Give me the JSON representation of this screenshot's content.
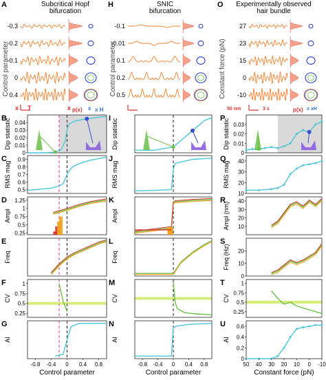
{
  "columns": [
    {
      "letter": "A",
      "title_line1": "Subcritical Hopf",
      "title_line2": "bifurcation",
      "row_labels": [
        "-0.3",
        "-0.2",
        "-0.1",
        "0",
        "0.4"
      ],
      "y_axis_label": "Control parameter",
      "trace_color": "#ef7f2a",
      "scale_labels": [
        "x",
        "T",
        "x",
        "p(x)",
        "x",
        "x",
        "H"
      ]
    },
    {
      "letter": "H",
      "title_line1": "SNIC",
      "title_line2": "bifurcation",
      "row_labels": [
        "-0.1",
        "-0.01",
        "0.1",
        "0.2",
        "0.5"
      ],
      "y_axis_label": "Control parameter",
      "trace_color": "#ef7f2a"
    },
    {
      "letter": "O",
      "title_line1": "Experimentally observed",
      "title_line2": "hair bundle",
      "row_labels": [
        "27",
        "23",
        "15",
        "0",
        "-10"
      ],
      "y_axis_label": "Constant force (pN)",
      "trace_color": "#ef7f2a",
      "scale_labels": [
        "50 nm",
        "3 s",
        "p(x)",
        "x",
        "x",
        "H"
      ]
    }
  ],
  "panel_letters": {
    "col1": [
      "B",
      "C",
      "D",
      "E",
      "F",
      "G"
    ],
    "col2": [
      "I",
      "J",
      "K",
      "L",
      "M",
      "N"
    ],
    "col3": [
      "P",
      "Q",
      "R",
      "S",
      "T",
      "U"
    ]
  },
  "row_ylabels": [
    "Dip statistic",
    "RMS mag",
    "Ampl",
    "Freq",
    "CV",
    "AI"
  ],
  "row_ylabels_col3": [
    "Dip statistic",
    "RMS mag",
    "Ampl (nm)",
    "Freq (Hz)",
    "CV",
    "AI"
  ],
  "xlabels": [
    "Control parameter",
    "Control parameter",
    "Constant force (pN)"
  ],
  "colors": {
    "cyan": "#4cc6d8",
    "green": "#6cc04a",
    "orange": "#f2a11f",
    "red": "#d8332a",
    "magenta": "#e0319e",
    "purple": "#8a5fe0",
    "gray": "#d9d9d9",
    "lime": "#cde85a",
    "blue": "#3a4fd0"
  },
  "chart_data": [
    {
      "type": "line",
      "panel": "B",
      "ylabel": "Dip statistic",
      "xlim": [
        -1,
        1
      ],
      "ylim": [
        0,
        0.05
      ],
      "x": [
        -1,
        -0.6,
        -0.3,
        -0.15,
        -0.05,
        0,
        0.05,
        0.2,
        0.5,
        0.8,
        1
      ],
      "series": [
        {
          "values": [
            0.0,
            0.0,
            0.001,
            0.004,
            0.015,
            0.03,
            0.038,
            0.042,
            0.045,
            0.047,
            0.048
          ]
        }
      ],
      "yticks": [
        "0",
        "0.01",
        "0.02",
        "0.03",
        "0.04"
      ]
    },
    {
      "type": "line",
      "panel": "C",
      "ylabel": "RMS mag",
      "xlim": [
        -1,
        1
      ],
      "ylim": [
        0.45,
        0.95
      ],
      "x": [
        -1,
        -0.8,
        -0.6,
        -0.4,
        -0.2,
        -0.1,
        0,
        0.1,
        0.2,
        0.4,
        0.6,
        0.8,
        1
      ],
      "series": [
        {
          "values": [
            0.49,
            0.5,
            0.51,
            0.52,
            0.55,
            0.58,
            0.7,
            0.78,
            0.82,
            0.86,
            0.89,
            0.91,
            0.93
          ]
        }
      ],
      "yticks": [
        "0.5",
        "0.6",
        "0.7",
        "0.8",
        "0.9"
      ]
    },
    {
      "type": "line",
      "panel": "D",
      "ylabel": "Ampl",
      "xlim": [
        -1,
        1
      ],
      "ylim": [
        0.2,
        1.35
      ],
      "x": [
        -0.35,
        -0.2,
        0,
        0.2,
        0.4,
        0.6,
        0.8,
        1
      ],
      "series": [
        {
          "values": [
            0.85,
            0.9,
            0.97,
            1.05,
            1.12,
            1.18,
            1.22,
            1.26
          ]
        }
      ],
      "yticks": [
        "0.25",
        "0.5",
        "0.75",
        "1",
        "1.25"
      ]
    },
    {
      "type": "line",
      "panel": "E",
      "ylabel": "Freq",
      "xlim": [
        -1,
        1
      ],
      "x": [
        -0.4,
        -0.2,
        0,
        0.2,
        0.4,
        0.6,
        0.8,
        1
      ],
      "series": [
        {
          "values": [
            0.25,
            0.4,
            0.52,
            0.6,
            0.66,
            0.72,
            0.78,
            0.82
          ]
        }
      ]
    },
    {
      "type": "line",
      "panel": "F",
      "ylabel": "CV",
      "xlim": [
        -1,
        1
      ],
      "ylim": [
        0.15,
        1.1
      ],
      "x": [
        -0.2,
        -0.1,
        0
      ],
      "series": [
        {
          "values": [
            1.0,
            0.55,
            0.3
          ]
        }
      ],
      "yticks": [
        "0.25",
        "0.5",
        "0.75",
        "1"
      ]
    },
    {
      "type": "line",
      "panel": "G",
      "ylabel": "AI",
      "xlim": [
        -1,
        1
      ],
      "x": [
        -0.3,
        -0.1,
        0,
        0.1,
        0.3,
        0.6,
        1
      ],
      "series": [
        {
          "values": [
            0.0,
            0.05,
            0.5,
            0.9,
            1.0,
            1.0,
            1.0
          ]
        }
      ],
      "xticks": [
        "-0.8",
        "-0.4",
        "0",
        "0.4",
        "0.8"
      ],
      "xlabel": "Control parameter"
    },
    {
      "type": "line",
      "panel": "I",
      "ylabel": "Dip statistic",
      "xlim": [
        -1,
        1
      ],
      "x": [
        -1,
        -0.5,
        0,
        0.2,
        0.5,
        0.8,
        1
      ],
      "series": [
        {
          "values": [
            0,
            0,
            0.005,
            0.015,
            0.03,
            0.045,
            0.05
          ]
        }
      ]
    },
    {
      "type": "line",
      "panel": "J",
      "ylabel": "RMS mag",
      "xlim": [
        -1,
        1
      ],
      "x": [
        -1,
        -0.5,
        -0.05,
        0,
        0.05,
        0.5,
        1
      ],
      "series": [
        {
          "values": [
            0.05,
            0.06,
            0.08,
            0.6,
            0.75,
            0.85,
            0.88
          ]
        }
      ]
    },
    {
      "type": "line",
      "panel": "K",
      "ylabel": "Ampl",
      "xlim": [
        -1,
        1
      ],
      "x": [
        -1,
        -0.5,
        -0.05,
        0,
        0.05,
        0.5,
        1
      ],
      "series": [
        {
          "values": [
            0.25,
            0.3,
            0.35,
            0.9,
            0.92,
            0.95,
            0.97
          ]
        }
      ]
    },
    {
      "type": "line",
      "panel": "L",
      "ylabel": "Freq",
      "xlim": [
        -1,
        1
      ],
      "x": [
        -1,
        -0.5,
        0,
        0.2,
        0.5,
        0.8,
        1
      ],
      "series": [
        {
          "values": [
            0,
            0,
            0,
            0.3,
            0.55,
            0.75,
            0.85
          ]
        }
      ]
    },
    {
      "type": "line",
      "panel": "M",
      "ylabel": "CV",
      "xlim": [
        -1,
        1
      ],
      "x": [
        0,
        0.05,
        0.1,
        0.3,
        0.6,
        1
      ],
      "series": [
        {
          "values": [
            0.9,
            0.4,
            0.25,
            0.15,
            0.12,
            0.1
          ]
        }
      ]
    },
    {
      "type": "line",
      "panel": "N",
      "ylabel": "AI",
      "xlim": [
        -1,
        1
      ],
      "x": [
        -1,
        -0.05,
        0,
        0.1,
        0.5,
        1
      ],
      "series": [
        {
          "values": [
            0,
            0,
            0.8,
            0.85,
            0.9,
            0.92
          ]
        }
      ],
      "xticks": [
        "-0.8",
        "-0.4",
        "0",
        "0.4",
        "0.8"
      ],
      "xlabel": "Control parameter"
    },
    {
      "type": "line",
      "panel": "P",
      "ylabel": "Dip statistic",
      "xlim": [
        50,
        -10
      ],
      "ylim": [
        0,
        0.04
      ],
      "x": [
        50,
        45,
        40,
        35,
        30,
        25,
        20,
        15,
        10,
        5,
        0,
        -5,
        -10
      ],
      "series": [
        {
          "values": [
            0.003,
            0.004,
            0.004,
            0.005,
            0.006,
            0.005,
            0.007,
            0.01,
            0.02,
            0.024,
            0.022,
            0.03,
            0.033
          ]
        }
      ],
      "yticks": [
        "0",
        "0.01",
        "0.02",
        "0.03"
      ]
    },
    {
      "type": "line",
      "panel": "Q",
      "ylabel": "RMS mag",
      "xlim": [
        50,
        -10
      ],
      "ylim": [
        10,
        45
      ],
      "x": [
        50,
        40,
        30,
        25,
        20,
        15,
        10,
        5,
        0,
        -5,
        -10
      ],
      "series": [
        {
          "values": [
            13,
            13,
            14,
            15,
            18,
            28,
            33,
            36,
            37,
            38,
            40
          ]
        }
      ],
      "yticks": [
        "10",
        "20",
        "30",
        "40"
      ]
    },
    {
      "type": "line",
      "panel": "R",
      "ylabel": "Ampl (nm)",
      "xlim": [
        50,
        -10
      ],
      "ylim": [
        0,
        45
      ],
      "x": [
        30,
        25,
        20,
        15,
        10,
        5,
        0,
        -5,
        -10
      ],
      "series": [
        {
          "values": [
            10,
            15,
            25,
            35,
            38,
            33,
            40,
            35,
            42
          ]
        }
      ],
      "yticks": [
        "10",
        "20",
        "30",
        "40"
      ]
    },
    {
      "type": "line",
      "panel": "S",
      "ylabel": "Freq (Hz)",
      "xlim": [
        50,
        -10
      ],
      "ylim": [
        0,
        30
      ],
      "x": [
        30,
        25,
        20,
        15,
        10,
        5,
        0,
        -5,
        -10
      ],
      "series": [
        {
          "values": [
            2,
            4,
            8,
            12,
            10,
            12,
            15,
            18,
            25
          ]
        }
      ],
      "yticks": [
        "0",
        "10",
        "20"
      ]
    },
    {
      "type": "line",
      "panel": "T",
      "ylabel": "CV",
      "xlim": [
        50,
        -10
      ],
      "ylim": [
        0.1,
        1.1
      ],
      "x": [
        30,
        25,
        20,
        15,
        10,
        5,
        0,
        -5,
        -10
      ],
      "series": [
        {
          "values": [
            0.8,
            0.6,
            0.45,
            0.5,
            0.4,
            0.35,
            0.3,
            0.25,
            0.2
          ]
        }
      ],
      "yticks": [
        "0.25",
        "0.5",
        "0.75",
        "1"
      ]
    },
    {
      "type": "line",
      "panel": "U",
      "ylabel": "AI",
      "xlim": [
        50,
        -10
      ],
      "ylim": [
        0,
        0.7
      ],
      "x": [
        50,
        40,
        30,
        25,
        20,
        15,
        10,
        5,
        0,
        -5,
        -10
      ],
      "series": [
        {
          "values": [
            0,
            0,
            0,
            0.05,
            0.2,
            0.4,
            0.55,
            0.58,
            0.6,
            0.62,
            0.62
          ]
        }
      ],
      "yticks": [
        "0",
        "0.2",
        "0.4",
        "0.6"
      ],
      "xticks": [
        "50",
        "40",
        "30",
        "20",
        "10",
        "0",
        "-10"
      ],
      "xlabel": "Constant force (pN)"
    }
  ]
}
